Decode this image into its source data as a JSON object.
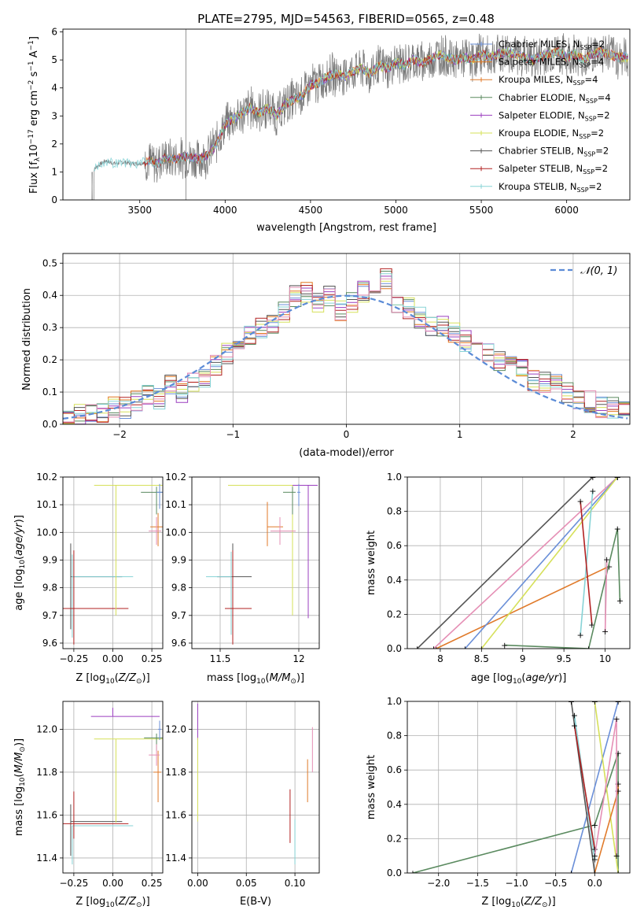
{
  "figure": {
    "title": "PLATE=2795, MJD=54563, FIBERID=0565, z=0.48"
  },
  "colors": {
    "Chabrier MILES": "#6a8fd8",
    "Salpeter MILES": "#e2771f",
    "Kroupa MILES": "#e07a2a",
    "Chabrier ELODIE": "#5a8a5f",
    "Salpeter ELODIE": "#9b3fbf",
    "Kroupa ELODIE": "#d6e05a",
    "Chabrier STELIB": "#555555",
    "Salpeter STELIB": "#b22222",
    "Kroupa STELIB": "#87d3d6",
    "Pink MILES": "#e58fb5",
    "Normal": "#5b8bd6"
  },
  "chart_data": [
    {
      "id": "spectrum",
      "type": "line",
      "title": "PLATE=2795, MJD=54563, FIBERID=0565, z=0.48",
      "xlabel": "wavelength [Angstrom, rest frame]",
      "ylabel": "Flux [f_λ 10^-17 erg cm^-2 s^-1 A^-1]",
      "xlim": [
        3050,
        6370
      ],
      "ylim": [
        0,
        6.1
      ],
      "xticks": [
        3500,
        4000,
        4500,
        5000,
        5500,
        6000
      ],
      "yticks": [
        0,
        1,
        2,
        3,
        4,
        5,
        6
      ],
      "grid": false,
      "legend_position": "top-right",
      "legend": [
        "Chabrier MILES, N_SSP=2",
        "Salpeter MILES, N_SSP=4",
        "Kroupa MILES, N_SSP=4",
        "Chabrier ELODIE, N_SSP=4",
        "Salpeter ELODIE, N_SSP=2",
        "Kroupa ELODIE, N_SSP=2",
        "Chabrier STELIB, N_SSP=2",
        "Salpeter STELIB, N_SSP=2",
        "Kroupa STELIB, N_SSP=2"
      ],
      "data_trend": {
        "x": [
          3220,
          3250,
          3300,
          3350,
          3400,
          3450,
          3500,
          3550,
          3600,
          3650,
          3700,
          3750,
          3800,
          3850,
          3900,
          3950,
          4000,
          4050,
          4100,
          4150,
          4200,
          4250,
          4300,
          4350,
          4400,
          4450,
          4500,
          4550,
          4600,
          4650,
          4700,
          4750,
          4800,
          4850,
          4900,
          4950,
          5000,
          5050,
          5100,
          5150,
          5200,
          5250,
          5300,
          5350,
          5400,
          5450,
          5500,
          5550,
          5600,
          5650,
          5700,
          5750,
          5800,
          5850,
          5900,
          5950,
          6000,
          6050,
          6100,
          6150,
          6200,
          6250,
          6300
        ],
        "y": [
          1.0,
          1.2,
          1.4,
          1.3,
          1.35,
          1.3,
          1.3,
          1.4,
          1.3,
          1.5,
          1.45,
          1.55,
          1.5,
          1.45,
          1.6,
          2.0,
          2.7,
          2.9,
          3.1,
          3.3,
          3.1,
          3.3,
          3.0,
          3.4,
          3.6,
          3.7,
          4.1,
          4.2,
          4.4,
          4.5,
          4.4,
          4.6,
          4.7,
          4.5,
          4.8,
          4.7,
          4.9,
          4.8,
          5.0,
          4.9,
          5.0,
          5.2,
          5.1,
          5.0,
          5.1,
          5.0,
          5.2,
          5.1,
          5.2,
          5.3,
          5.2,
          5.1,
          5.0,
          5.1,
          5.2,
          5.3,
          5.1,
          5.2,
          5.0,
          5.2,
          5.3,
          5.2,
          5.1
        ]
      }
    },
    {
      "id": "residuals",
      "type": "line",
      "xlabel": "(data-model)/error",
      "ylabel": "Normed distribution",
      "xlim": [
        -2.5,
        2.5
      ],
      "ylim": [
        0,
        0.53
      ],
      "xticks": [
        -2,
        -1,
        0,
        1,
        2
      ],
      "yticks": [
        0.0,
        0.1,
        0.2,
        0.3,
        0.4,
        0.5
      ],
      "grid": true,
      "legend_position": "top-right",
      "legend": [
        "𝒩(0, 1)"
      ],
      "hist_bins": [
        -2.5,
        -2.4,
        -2.3,
        -2.2,
        -2.1,
        -2.0,
        -1.9,
        -1.8,
        -1.7,
        -1.6,
        -1.5,
        -1.4,
        -1.3,
        -1.2,
        -1.1,
        -1.0,
        -0.9,
        -0.8,
        -0.7,
        -0.6,
        -0.5,
        -0.4,
        -0.3,
        -0.2,
        -0.1,
        0.0,
        0.1,
        0.2,
        0.3,
        0.4,
        0.5,
        0.6,
        0.7,
        0.8,
        0.9,
        1.0,
        1.1,
        1.2,
        1.3,
        1.4,
        1.5,
        1.6,
        1.7,
        1.8,
        1.9,
        2.0,
        2.1,
        2.2,
        2.3,
        2.4
      ],
      "hist_values": [
        0.02,
        0.03,
        0.03,
        0.04,
        0.05,
        0.05,
        0.07,
        0.09,
        0.08,
        0.12,
        0.1,
        0.13,
        0.15,
        0.18,
        0.22,
        0.26,
        0.28,
        0.3,
        0.31,
        0.35,
        0.4,
        0.41,
        0.38,
        0.4,
        0.35,
        0.38,
        0.41,
        0.39,
        0.45,
        0.38,
        0.36,
        0.33,
        0.31,
        0.3,
        0.28,
        0.26,
        0.22,
        0.23,
        0.2,
        0.19,
        0.18,
        0.14,
        0.13,
        0.12,
        0.1,
        0.08,
        0.07,
        0.05,
        0.05,
        0.04
      ]
    },
    {
      "id": "age_vs_Z",
      "type": "scatter",
      "xlabel": "Z [log10(Z/Z⊙)]",
      "ylabel": "age  [log10(age/yr)]",
      "xlim": [
        -0.32,
        0.32
      ],
      "ylim": [
        9.58,
        10.2
      ],
      "xticks": [
        -0.25,
        0.0,
        0.25
      ],
      "xtick_labels": [
        "−0.25",
        "0.00",
        "0.25"
      ],
      "yticks": [
        9.6,
        9.7,
        9.8,
        9.9,
        10.0,
        10.1,
        10.2
      ],
      "grid": true
    },
    {
      "id": "age_vs_mass",
      "type": "scatter",
      "xlabel": "mass [log10(M/M⊙)]",
      "xlim": [
        11.32,
        12.13
      ],
      "ylim": [
        9.58,
        10.2
      ],
      "xticks": [
        11.5,
        12.0
      ],
      "yticks": [
        9.6,
        9.7,
        9.8,
        9.9,
        10.0,
        10.1,
        10.2
      ],
      "grid": true
    },
    {
      "id": "weight_vs_age",
      "type": "line",
      "xlabel": "age  [log10(age/yr)]",
      "ylabel": "mass weight",
      "xlim": [
        7.6,
        10.3
      ],
      "ylim": [
        0.0,
        1.0
      ],
      "xticks": [
        8.0,
        8.5,
        9.0,
        9.5,
        10.0
      ],
      "yticks": [
        0.0,
        0.2,
        0.4,
        0.6,
        0.8,
        1.0
      ],
      "grid": true
    },
    {
      "id": "mass_vs_Z",
      "type": "scatter",
      "xlabel": "Z [log10(Z/Z⊙)]",
      "ylabel": "mass [log10(M/M⊙)]",
      "xlim": [
        -0.32,
        0.32
      ],
      "ylim": [
        11.33,
        12.13
      ],
      "xticks": [
        -0.25,
        0.0,
        0.25
      ],
      "xtick_labels": [
        "−0.25",
        "0.00",
        "0.25"
      ],
      "yticks": [
        11.4,
        11.6,
        11.8,
        12.0
      ],
      "grid": true
    },
    {
      "id": "mass_vs_ebv",
      "type": "scatter",
      "xlabel": "E(B-V)",
      "xlim": [
        -0.006,
        0.125
      ],
      "ylim": [
        11.33,
        12.13
      ],
      "xticks": [
        0.0,
        0.05,
        0.1
      ],
      "xtick_labels": [
        "0.00",
        "0.05",
        "0.10"
      ],
      "yticks": [
        11.4,
        11.6,
        11.8,
        12.0
      ],
      "grid": true
    },
    {
      "id": "weight_vs_Z",
      "type": "line",
      "xlabel": "Z [log10(Z/Z⊙)]",
      "ylabel": "mass weight",
      "xlim": [
        -2.4,
        0.45
      ],
      "ylim": [
        0.0,
        1.0
      ],
      "xticks": [
        -2.0,
        -1.5,
        -1.0,
        -0.5,
        0.0
      ],
      "xtick_labels": [
        "−2.0",
        "−1.5",
        "−1.0",
        "−0.5",
        "0.0"
      ],
      "yticks": [
        0.0,
        0.2,
        0.4,
        0.6,
        0.8,
        1.0
      ],
      "grid": true
    }
  ]
}
